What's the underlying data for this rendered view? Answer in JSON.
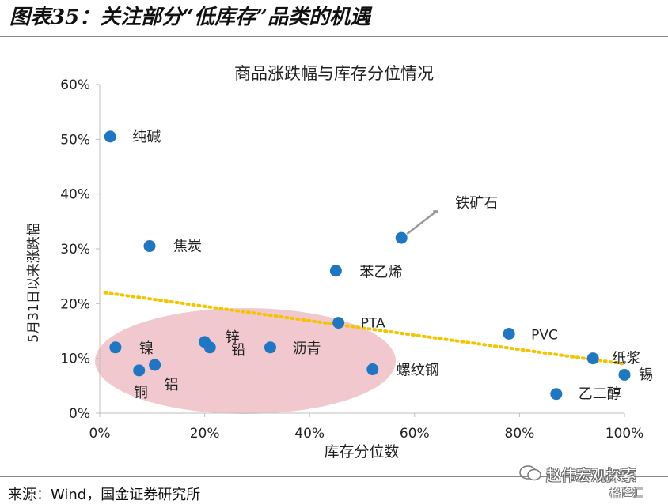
{
  "header": {
    "figure_title": "图表35：关注部分“低库存”品类的机遇"
  },
  "footer": {
    "source": "来源：Wind，国金证券研究所",
    "watermark": "赵伟宏观探索",
    "watermark_sub": "格隆汇"
  },
  "chart_data": {
    "type": "scatter",
    "title": "商品涨跌幅与库存分位情况",
    "xlabel": "库存分位数",
    "ylabel": "5月31日以来涨跌幅",
    "xlim": [
      0,
      100
    ],
    "ylim": [
      0,
      60
    ],
    "x_ticks": [
      "0%",
      "20%",
      "40%",
      "60%",
      "80%",
      "100%"
    ],
    "y_ticks": [
      "0%",
      "10%",
      "20%",
      "30%",
      "40%",
      "50%",
      "60%"
    ],
    "grid": false,
    "legend": "none",
    "colors": {
      "points": "#1f77c4",
      "trend": "#f5c400",
      "highlight": "#e8aab2"
    },
    "points": [
      {
        "label": "纯碱",
        "x": 2,
        "y": 50.5
      },
      {
        "label": "焦炭",
        "x": 9.5,
        "y": 30.5
      },
      {
        "label": "铁矿石",
        "x": 57.5,
        "y": 32
      },
      {
        "label": "苯乙烯",
        "x": 45,
        "y": 26
      },
      {
        "label": "PTA",
        "x": 45.5,
        "y": 16.5
      },
      {
        "label": "PVC",
        "x": 78,
        "y": 14.5
      },
      {
        "label": "纸浆",
        "x": 94,
        "y": 10
      },
      {
        "label": "锡",
        "x": 100,
        "y": 7
      },
      {
        "label": "乙二醇",
        "x": 87,
        "y": 3.5
      },
      {
        "label": "镍",
        "x": 3,
        "y": 12
      },
      {
        "label": "锌",
        "x": 20,
        "y": 13
      },
      {
        "label": "铅",
        "x": 21,
        "y": 12
      },
      {
        "label": "沥青",
        "x": 32.5,
        "y": 12
      },
      {
        "label": "螺纹钢",
        "x": 52,
        "y": 8
      },
      {
        "label": "铜",
        "x": 7.5,
        "y": 7.8
      },
      {
        "label": "铝",
        "x": 10.5,
        "y": 8.8
      }
    ],
    "trendline": {
      "type": "linear",
      "from": [
        1,
        22
      ],
      "to": [
        100,
        9
      ]
    }
  }
}
